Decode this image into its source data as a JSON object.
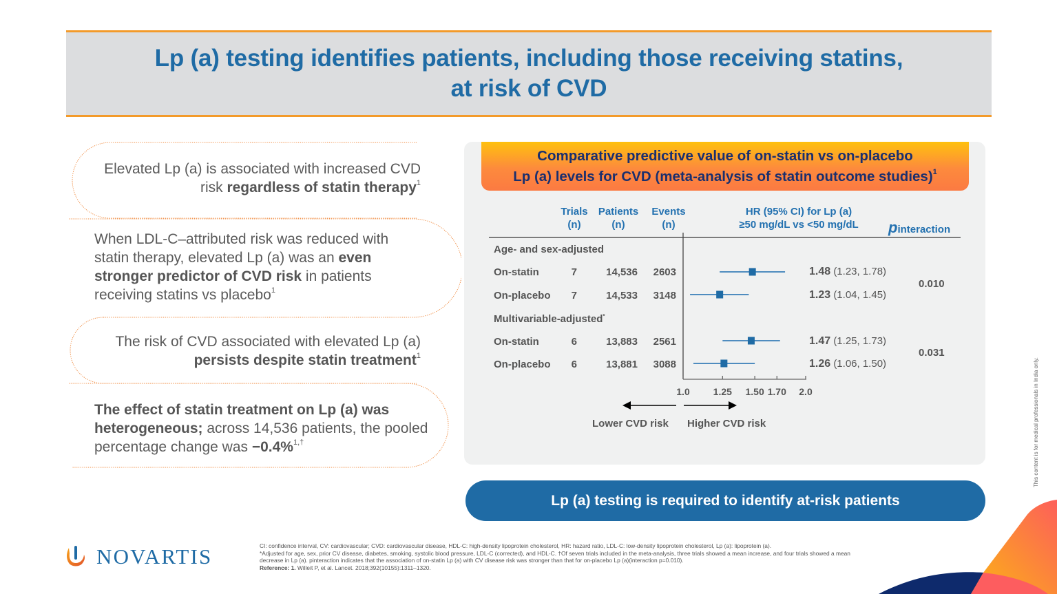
{
  "slide": {
    "title": "Lp (a) testing identifies patients, including those receiving statins, at risk of CVD",
    "title_line1": "Lp (a) testing identifies patients, including those receiving statins,",
    "title_line2": "at risk of CVD"
  },
  "bullets": [
    {
      "parts": [
        {
          "t": "Elevated Lp (a) is associated with increased CVD risk ",
          "b": false
        },
        {
          "t": "regardless of statin therapy",
          "b": true
        }
      ],
      "sup": "1"
    },
    {
      "parts": [
        {
          "t": "When LDL-C–attributed risk was reduced with statin therapy, elevated Lp (a) was an ",
          "b": false
        },
        {
          "t": "even stronger predictor of CVD risk",
          "b": true
        },
        {
          "t": " in patients receiving statins vs placebo",
          "b": false
        }
      ],
      "sup": "1"
    },
    {
      "parts": [
        {
          "t": "The risk of CVD associated with elevated Lp (a) ",
          "b": false
        },
        {
          "t": "persists despite statin treatment",
          "b": true
        }
      ],
      "sup": "1"
    },
    {
      "parts": [
        {
          "t": "The effect of statin treatment on Lp (a) was heterogeneous;",
          "b": true
        },
        {
          "t": " across 14,536 patients, the pooled percentage change was ",
          "b": false
        },
        {
          "t": "−0.4%",
          "b": true
        }
      ],
      "sup": "1,†"
    }
  ],
  "panel": {
    "title_line1": "Comparative predictive value of on-statin vs on-placebo",
    "title_line2": "Lp (a) levels for CVD (meta-analysis of statin outcome studies)",
    "title_sup": "1"
  },
  "chart_data": {
    "type": "forest",
    "title": "Comparative predictive value of on-statin vs on-placebo Lp (a) levels for CVD (meta-analysis of statin outcome studies)",
    "columns": {
      "trials": [
        "Trials",
        "(n)"
      ],
      "patients": [
        "Patients",
        "(n)"
      ],
      "events": [
        "Events",
        "(n)"
      ],
      "hr": [
        "HR (95% CI) for Lp (a)",
        "≥50 mg/dL vs <50 mg/dL"
      ],
      "p_prefix": "p",
      "p_suffix": "interaction"
    },
    "x_scale": "log",
    "xlim": [
      1.0,
      2.0
    ],
    "x_ticks": [
      1.0,
      1.25,
      1.5,
      1.7,
      2.0
    ],
    "x_tick_labels": [
      "1.0",
      "1.25",
      "1.50",
      "1.70",
      "2.0"
    ],
    "direction_labels": {
      "left": "Lower CVD risk",
      "right": "Higher CVD risk"
    },
    "groups": [
      {
        "label": "Age- and sex-adjusted",
        "label_sup": "",
        "p_interaction": "0.010",
        "rows": [
          {
            "label": "On-statin",
            "trials": "7",
            "patients": "14,536",
            "events": "2603",
            "hr": 1.48,
            "lo": 1.23,
            "hi": 1.78,
            "hr_text": "1.48",
            "ci_text": "(1.23, 1.78)"
          },
          {
            "label": "On-placebo",
            "trials": "7",
            "patients": "14,533",
            "events": "3148",
            "hr": 1.23,
            "lo": 1.04,
            "hi": 1.45,
            "hr_text": "1.23",
            "ci_text": "(1.04, 1.45)"
          }
        ]
      },
      {
        "label": "Multivariable-adjusted",
        "label_sup": "*",
        "p_interaction": "0.031",
        "rows": [
          {
            "label": "On-statin",
            "trials": "6",
            "patients": "13,883",
            "events": "2561",
            "hr": 1.47,
            "lo": 1.25,
            "hi": 1.73,
            "hr_text": "1.47",
            "ci_text": "(1.25, 1.73)"
          },
          {
            "label": "On-placebo",
            "trials": "6",
            "patients": "13,881",
            "events": "3088",
            "hr": 1.26,
            "lo": 1.06,
            "hi": 1.5,
            "hr_text": "1.26",
            "ci_text": "(1.06, 1.50)"
          }
        ]
      }
    ],
    "marker_color": "#1f6ba5"
  },
  "cta": {
    "label": "Lp (a) testing is required to identify at-risk patients"
  },
  "footnotes": {
    "abbrev": "CI: confidence interval, CV: cardiovascular; CVD: cardiovascular disease, HDL-C: high-density lipoprotein cholesterol, HR: hazard ratio, LDL-C: low-density lipoprotein cholesterol, Lp (a): lipoprotein (a).",
    "adjusted": "*Adjusted for age, sex, prior CV disease, diabetes, smoking, systolic blood pressure, LDL-C (corrected), and HDL-C. †Of seven trials included in the meta-analysis, three trials showed a mean increase, and four trials showed a mean decrease in Lp (a). pinteraction indicates that the association of on-statin Lp (a) with CV disease risk was stronger than that for on-placebo Lp (a)(interaction p=0.010).",
    "reference_label": "Reference: 1.",
    "reference_text": " Willeit P, et al. Lancet. 2018;392(10155):1311–1320."
  },
  "logo": {
    "wordmark": "NOVARTIS"
  },
  "disclaimer": "This content is for medical professionals in India only.",
  "colors": {
    "brand_blue": "#1f6ba5",
    "orange": "#f39a2a",
    "navy": "#1a2f6e"
  }
}
